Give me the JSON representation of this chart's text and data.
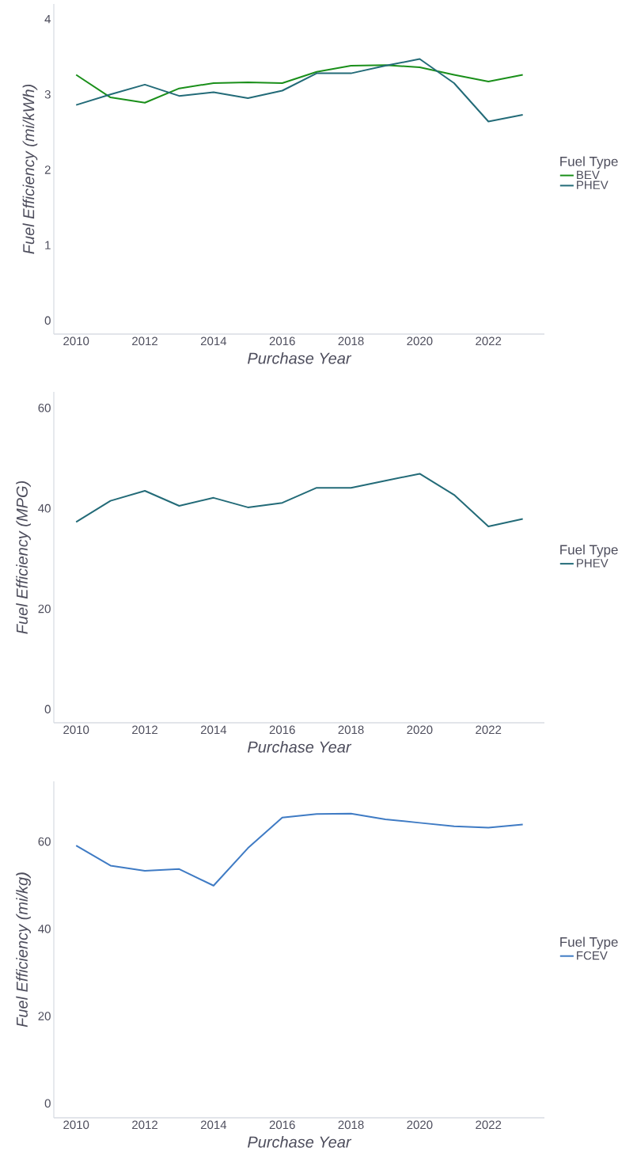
{
  "chart_data": [
    {
      "type": "line",
      "x": [
        2010,
        2011,
        2012,
        2013,
        2014,
        2015,
        2016,
        2017,
        2018,
        2019,
        2020,
        2021,
        2022,
        2023
      ],
      "xlabel": "Purchase Year",
      "ylabel": "Fuel Efficiency (mi/kWh)",
      "legend_title": "Fuel Type",
      "legend": "right",
      "xlim": [
        2009.35,
        2023.63
      ],
      "xticks": [
        2010,
        2012,
        2014,
        2016,
        2018,
        2020,
        2022
      ],
      "ylim": [
        -0.18,
        4.2
      ],
      "yticks": [
        0,
        1,
        2,
        3,
        4
      ],
      "series": [
        {
          "name": "BEV",
          "color": "#1a8f1a",
          "values": [
            3.26,
            2.96,
            2.89,
            3.08,
            3.15,
            3.16,
            3.15,
            3.3,
            3.38,
            3.39,
            3.36,
            3.26,
            3.17,
            3.26
          ]
        },
        {
          "name": "PHEV",
          "color": "#236b78",
          "values": [
            2.86,
            3.0,
            3.13,
            2.98,
            3.03,
            2.95,
            3.05,
            3.28,
            3.28,
            3.38,
            3.47,
            3.15,
            2.64,
            2.73
          ]
        }
      ]
    },
    {
      "type": "line",
      "x": [
        2010,
        2011,
        2012,
        2013,
        2014,
        2015,
        2016,
        2017,
        2018,
        2019,
        2020,
        2021,
        2022,
        2023
      ],
      "xlabel": "Purchase Year",
      "ylabel": "Fuel Efficiency (MPG)",
      "legend_title": "Fuel Type",
      "legend": "right",
      "xlim": [
        2009.35,
        2023.63
      ],
      "xticks": [
        2010,
        2012,
        2014,
        2016,
        2018,
        2020,
        2022
      ],
      "ylim": [
        -2.7,
        63.2
      ],
      "yticks": [
        0,
        20,
        40,
        60
      ],
      "series": [
        {
          "name": "PHEV",
          "color": "#236b78",
          "values": [
            37.3,
            41.5,
            43.5,
            40.5,
            42.1,
            40.2,
            41.1,
            44.1,
            44.1,
            45.5,
            46.9,
            42.7,
            36.4,
            37.9
          ]
        }
      ]
    },
    {
      "type": "line",
      "x": [
        2010,
        2011,
        2012,
        2013,
        2014,
        2015,
        2016,
        2017,
        2018,
        2019,
        2020,
        2021,
        2022,
        2023
      ],
      "xlabel": "Purchase Year",
      "ylabel": "Fuel Efficiency (mi/kg)",
      "legend_title": "Fuel Type",
      "legend": "right",
      "xlim": [
        2009.35,
        2023.63
      ],
      "xticks": [
        2010,
        2012,
        2014,
        2016,
        2018,
        2020,
        2022
      ],
      "ylim": [
        -3.3,
        73.8
      ],
      "yticks": [
        0,
        20,
        40,
        60
      ],
      "series": [
        {
          "name": "FCEV",
          "color": "#3f7bc4",
          "values": [
            59.1,
            54.5,
            53.3,
            53.7,
            49.9,
            58.5,
            65.5,
            66.3,
            66.4,
            65.1,
            64.3,
            63.5,
            63.2,
            63.9
          ]
        }
      ]
    }
  ]
}
